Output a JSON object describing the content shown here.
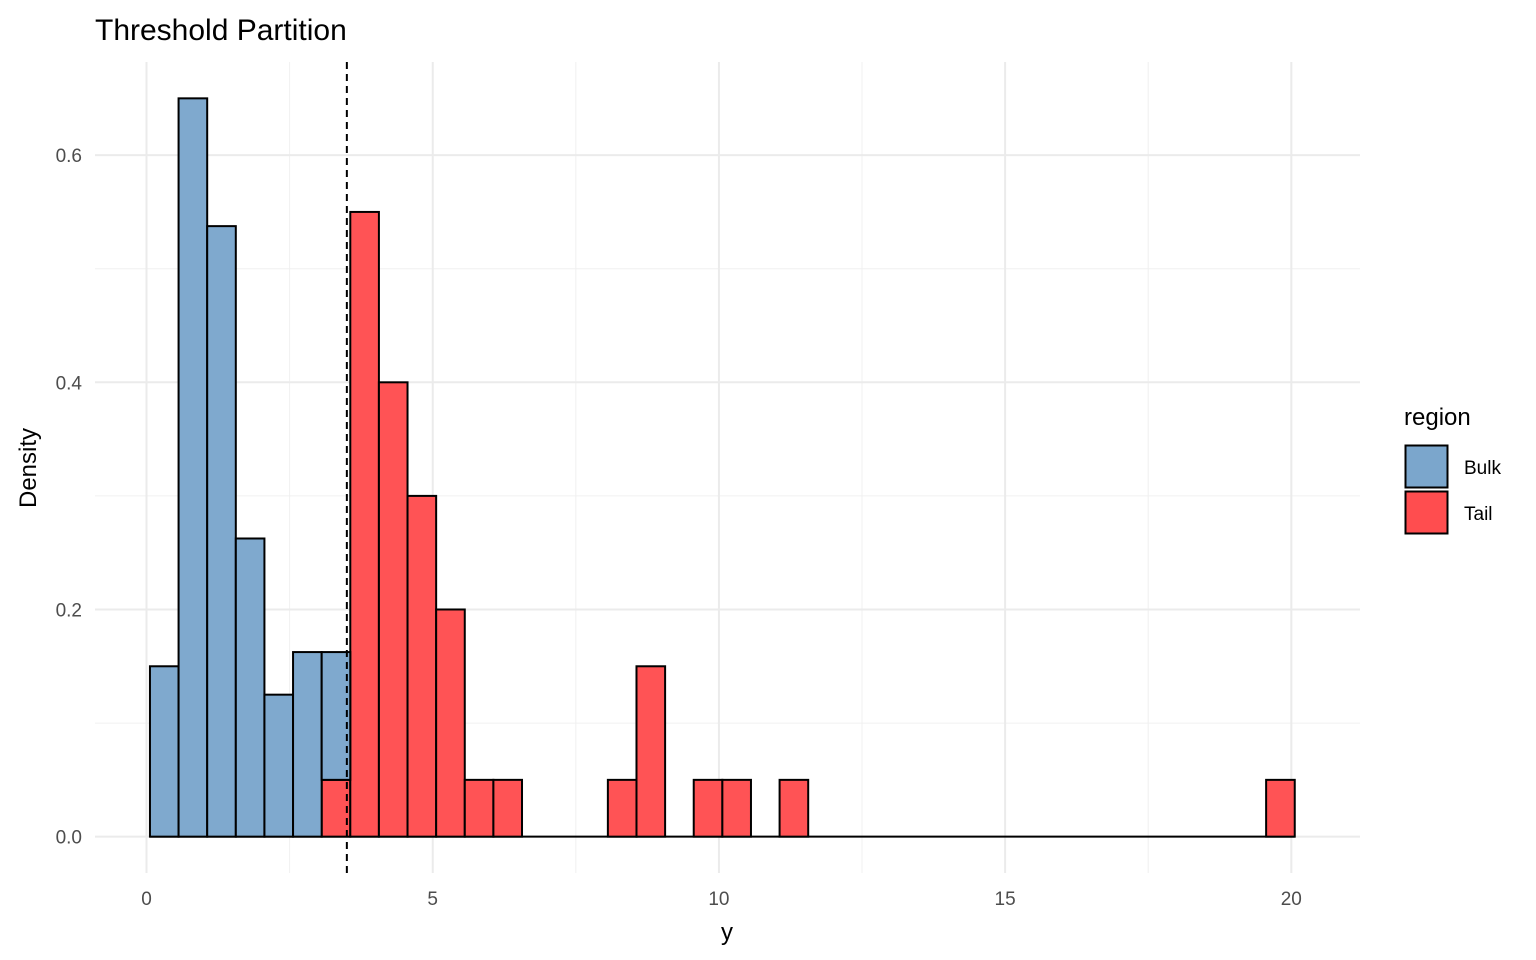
{
  "chart_data": {
    "type": "bar",
    "subtype": "stacked-histogram",
    "title": "Threshold Partition",
    "xlabel": "y",
    "ylabel": "Density",
    "xlim": [
      -0.9,
      21.2
    ],
    "ylim": [
      -0.032,
      0.682
    ],
    "x_ticks": [
      0,
      5,
      10,
      15,
      20
    ],
    "x_tick_labels": [
      "0",
      "5",
      "10",
      "15",
      "20"
    ],
    "y_ticks": [
      0.0,
      0.2,
      0.4,
      0.6
    ],
    "y_tick_labels": [
      "0.0",
      "0.2",
      "0.4",
      "0.6"
    ],
    "x_minor_ticks": [
      2.5,
      7.5,
      12.5,
      17.5
    ],
    "y_minor_ticks": [
      0.1,
      0.3,
      0.5
    ],
    "grid": true,
    "bin_width": 0.5,
    "bin_start": 0.06,
    "bin_end": 20.06,
    "threshold": 3.5,
    "threshold_style": "dashed",
    "legend": {
      "title": "region",
      "placement": "right",
      "entries": [
        "Bulk",
        "Tail"
      ]
    },
    "series": [
      {
        "name": "Bulk",
        "color": "#7BA6CC",
        "bins": [
          {
            "x0": 0.06,
            "value": 0.15
          },
          {
            "x0": 0.56,
            "value": 0.65
          },
          {
            "x0": 1.06,
            "value": 0.5375
          },
          {
            "x0": 1.56,
            "value": 0.2625
          },
          {
            "x0": 2.06,
            "value": 0.125
          },
          {
            "x0": 2.56,
            "value": 0.1625
          },
          {
            "x0": 3.06,
            "value": 0.1125
          }
        ]
      },
      {
        "name": "Tail",
        "color": "#FF4D4F",
        "bins": [
          {
            "x0": 3.06,
            "value": 0.05
          },
          {
            "x0": 3.56,
            "value": 0.55
          },
          {
            "x0": 4.06,
            "value": 0.4
          },
          {
            "x0": 4.56,
            "value": 0.3
          },
          {
            "x0": 5.06,
            "value": 0.2
          },
          {
            "x0": 5.56,
            "value": 0.05
          },
          {
            "x0": 6.06,
            "value": 0.05
          },
          {
            "x0": 8.06,
            "value": 0.05
          },
          {
            "x0": 8.56,
            "value": 0.15
          },
          {
            "x0": 9.56,
            "value": 0.05
          },
          {
            "x0": 10.06,
            "value": 0.05
          },
          {
            "x0": 11.06,
            "value": 0.05
          },
          {
            "x0": 19.56,
            "value": 0.05
          }
        ]
      }
    ],
    "stack_order": [
      "Tail",
      "Bulk"
    ]
  }
}
